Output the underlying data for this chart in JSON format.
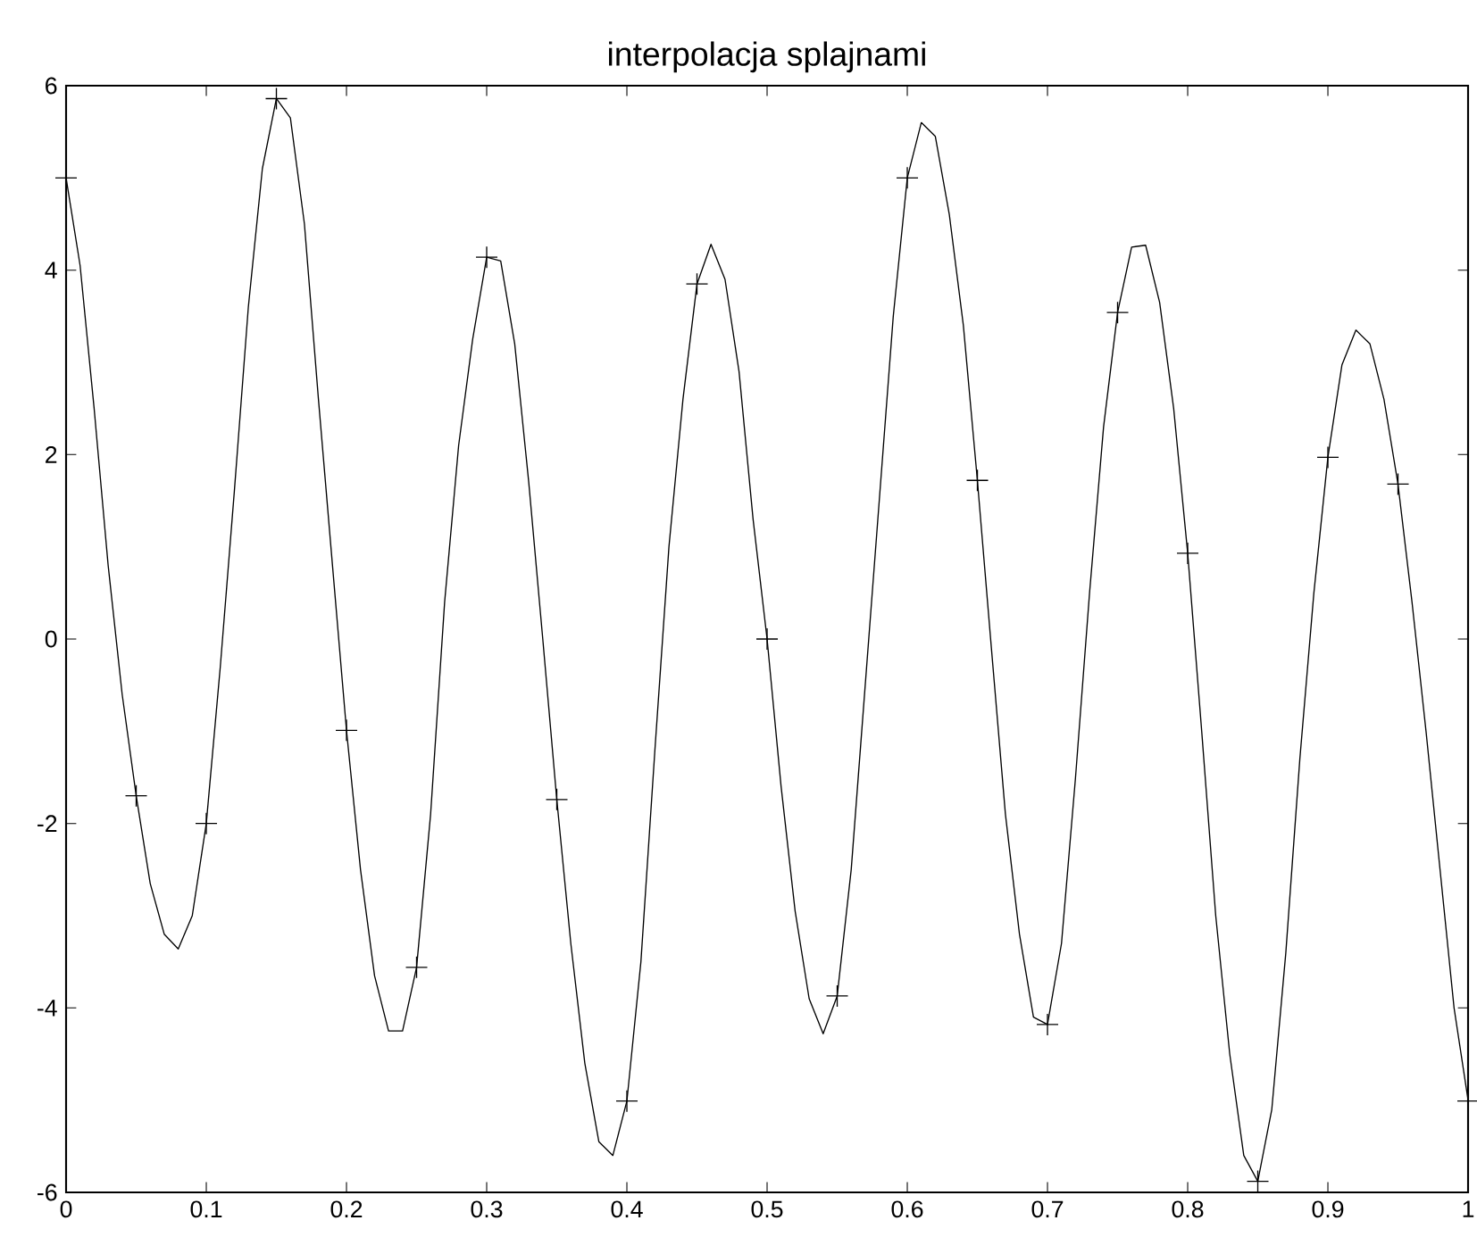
{
  "chart_data": {
    "type": "line",
    "title": "interpolacja splajnami",
    "xlim": [
      0,
      1
    ],
    "ylim": [
      -6,
      6
    ],
    "xticks": [
      0,
      0.1,
      0.2,
      0.3,
      0.4,
      0.5,
      0.6,
      0.7,
      0.8,
      0.9,
      1
    ],
    "yticks": [
      -6,
      -4,
      -2,
      0,
      2,
      4,
      6
    ],
    "grid": false,
    "series": [
      {
        "color": "#000000",
        "marker": "none",
        "x": [
          0,
          0.01,
          0.02,
          0.03,
          0.04,
          0.05,
          0.06,
          0.07,
          0.08,
          0.09,
          0.1,
          0.11,
          0.12,
          0.13,
          0.14,
          0.15,
          0.16,
          0.17,
          0.18,
          0.19,
          0.2,
          0.21,
          0.22,
          0.23,
          0.24,
          0.25,
          0.26,
          0.27,
          0.28,
          0.29,
          0.3,
          0.31,
          0.32,
          0.33,
          0.34,
          0.35,
          0.36,
          0.37,
          0.38,
          0.39,
          0.4,
          0.41,
          0.42,
          0.43,
          0.44,
          0.45,
          0.46,
          0.47,
          0.48,
          0.49,
          0.5,
          0.51,
          0.52,
          0.53,
          0.54,
          0.55,
          0.56,
          0.57,
          0.58,
          0.59,
          0.6,
          0.61,
          0.62,
          0.63,
          0.64,
          0.65,
          0.66,
          0.67,
          0.68,
          0.69,
          0.7,
          0.71,
          0.72,
          0.73,
          0.74,
          0.75,
          0.76,
          0.77,
          0.78,
          0.79,
          0.8,
          0.81,
          0.82,
          0.83,
          0.84,
          0.85,
          0.86,
          0.87,
          0.88,
          0.89,
          0.9,
          0.91,
          0.92,
          0.93,
          0.94,
          0.95,
          0.96,
          0.97,
          0.98,
          0.99,
          1
        ],
        "values": [
          5.0,
          4.05,
          2.5,
          0.8,
          -0.6,
          -1.7,
          -2.65,
          -3.2,
          -3.36,
          -3.0,
          -2.0,
          -0.3,
          1.6,
          3.6,
          5.1,
          5.86,
          5.65,
          4.5,
          2.6,
          0.8,
          -0.99,
          -2.5,
          -3.65,
          -4.25,
          -4.25,
          -3.56,
          -1.9,
          0.4,
          2.1,
          3.25,
          4.14,
          4.1,
          3.2,
          1.7,
          0.0,
          -1.74,
          -3.3,
          -4.6,
          -5.45,
          -5.6,
          -5.01,
          -3.5,
          -1.2,
          1.0,
          2.6,
          3.85,
          4.28,
          3.9,
          2.9,
          1.3,
          0.0,
          -1.6,
          -2.95,
          -3.9,
          -4.28,
          -3.87,
          -2.5,
          -0.5,
          1.5,
          3.5,
          5.0,
          5.6,
          5.45,
          4.6,
          3.4,
          1.72,
          -0.1,
          -1.9,
          -3.2,
          -4.1,
          -4.18,
          -3.3,
          -1.5,
          0.5,
          2.3,
          3.54,
          4.25,
          4.27,
          3.65,
          2.5,
          0.93,
          -1.0,
          -3.0,
          -4.5,
          -5.6,
          -5.88,
          -5.1,
          -3.4,
          -1.3,
          0.5,
          1.97,
          2.97,
          3.35,
          3.2,
          2.6,
          1.68,
          0.4,
          -1.0,
          -2.5,
          -4.0,
          -5.0
        ]
      },
      {
        "type": "scatter",
        "color": "#000000",
        "marker": "cross",
        "x": [
          0,
          0.05,
          0.1,
          0.15,
          0.2,
          0.25,
          0.3,
          0.35,
          0.4,
          0.45,
          0.5,
          0.55,
          0.6,
          0.65,
          0.7,
          0.75,
          0.8,
          0.85,
          0.9,
          0.95,
          1
        ],
        "values": [
          5.0,
          -1.7,
          -2.0,
          5.86,
          -0.99,
          -3.56,
          4.14,
          -1.74,
          -5.01,
          3.85,
          0.0,
          -3.87,
          5.0,
          1.72,
          -4.18,
          3.54,
          0.93,
          -5.88,
          1.97,
          1.68,
          -5.01
        ]
      }
    ]
  }
}
